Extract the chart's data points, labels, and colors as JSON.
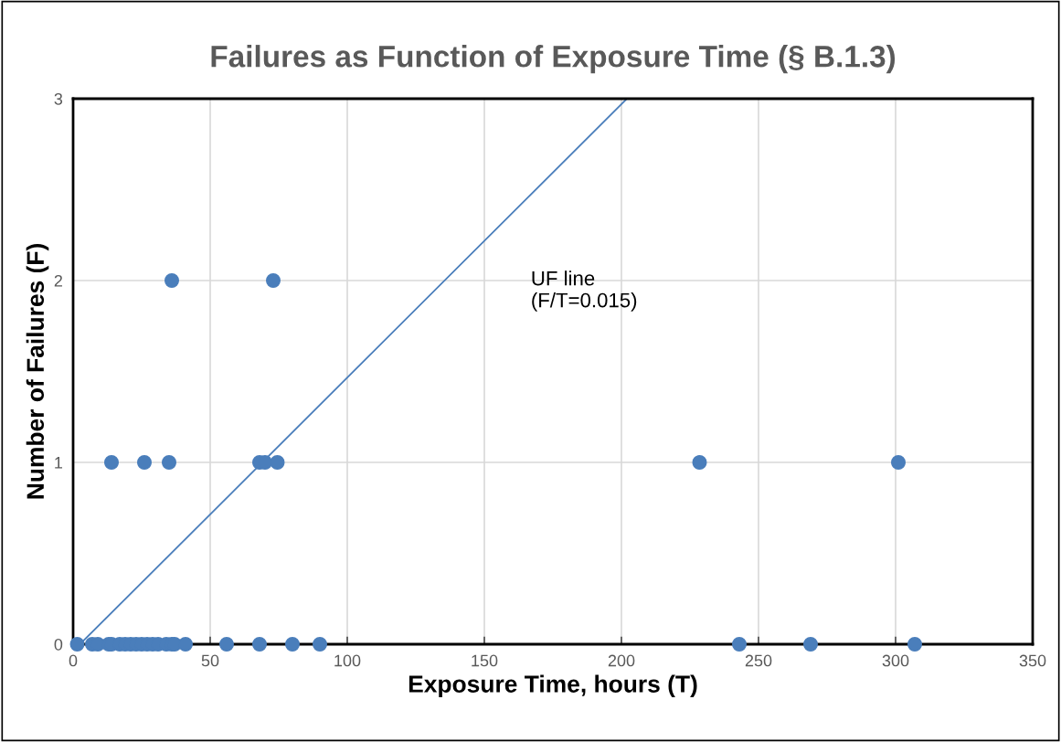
{
  "chart_data": {
    "type": "scatter",
    "title": "Failures as Function of Exposure Time (§ B.1.3)",
    "xlabel": "Exposure Time, hours (T)",
    "ylabel": "Number of Failures (F)",
    "xlim": [
      0,
      350
    ],
    "xticks": [
      0,
      50,
      100,
      150,
      200,
      250,
      300,
      350
    ],
    "ylim": [
      0,
      3
    ],
    "yticks": [
      0,
      1,
      2,
      3
    ],
    "grid": true,
    "marker": "circle",
    "series": [
      {
        "color": "#4a7ebb",
        "x": [
          1.5,
          7,
          9,
          13,
          14,
          17,
          19,
          21,
          23,
          25,
          27,
          29,
          31,
          34,
          36,
          37,
          41,
          56,
          68,
          80,
          90,
          243,
          269,
          307,
          14,
          26,
          35,
          68,
          70,
          74.5,
          228.5,
          301,
          36,
          73
        ],
        "values": [
          0,
          0,
          0,
          0,
          0,
          0,
          0,
          0,
          0,
          0,
          0,
          0,
          0,
          0,
          0,
          0,
          0,
          0,
          0,
          0,
          0,
          0,
          0,
          0,
          1,
          1,
          1,
          1,
          1,
          1,
          1,
          1,
          2,
          2
        ]
      },
      {
        "type": "line",
        "color": "#4a7ebb",
        "marker": "none",
        "x": [
          2.5,
          202
        ],
        "values": [
          0,
          3
        ]
      }
    ],
    "annotations": [
      "UF line\n(F/T=0.015)"
    ]
  }
}
